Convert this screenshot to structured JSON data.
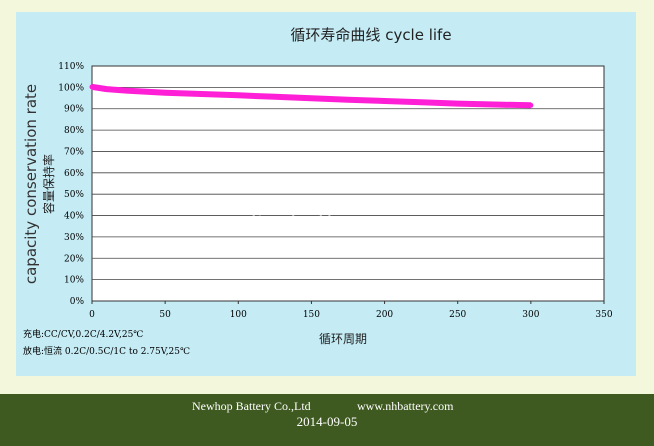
{
  "chart_data": {
    "type": "line",
    "title": "循环寿命曲线   cycle life",
    "ylabel": "capacity conservation rate",
    "ylabel_cn": "容量保持率",
    "xlabel": "循环周期",
    "xlim": [
      0,
      350
    ],
    "ylim": [
      0,
      110
    ],
    "x_ticks": [
      0,
      50,
      100,
      150,
      200,
      250,
      300,
      350
    ],
    "y_ticks": [
      0,
      10,
      20,
      30,
      40,
      50,
      60,
      70,
      80,
      90,
      100,
      110
    ],
    "y_tick_suffix": "%",
    "grid": "horizontal",
    "series": [
      {
        "color": "#ff1fd6",
        "x": [
          0,
          10,
          25,
          50,
          75,
          100,
          125,
          150,
          175,
          200,
          225,
          250,
          275,
          300
        ],
        "y": [
          100.2,
          99.2,
          98.4,
          97.5,
          96.9,
          96.3,
          95.6,
          94.9,
          94.2,
          93.6,
          93.0,
          92.4,
          92.0,
          91.6
        ]
      }
    ],
    "watermark": "lipobattery.com",
    "conditions": [
      "充电:CC/CV,0.2C/4.2V,25℃",
      "放电:恒流 0.2C/0.5C/1C to 2.75V,25℃"
    ]
  },
  "footer": {
    "company": "Newhop Battery Co.,Ltd",
    "website": "www.nhbattery.com",
    "date": "2014-09-05"
  },
  "colors": {
    "panel_bg": "#c5ecf5",
    "plot_bg": "#ffffff",
    "footer_bg": "#3f5a21",
    "series": "#ff1fd6"
  }
}
